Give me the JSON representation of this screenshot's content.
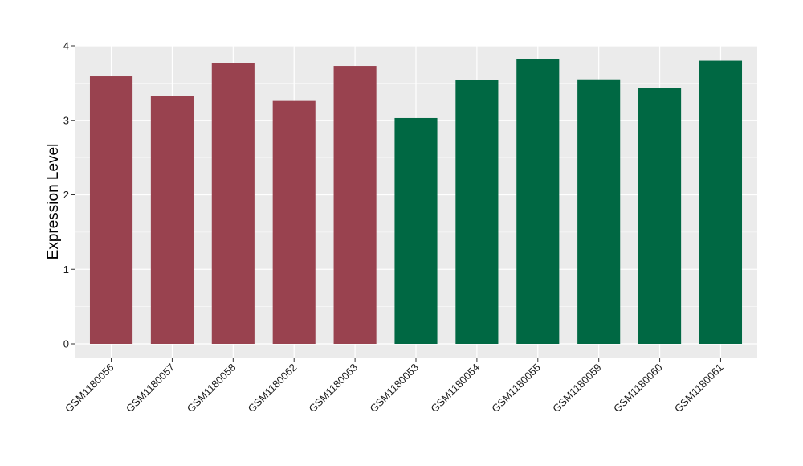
{
  "chart_data": {
    "type": "bar",
    "title": "",
    "xlabel": "",
    "ylabel": "Expression Level",
    "ylim": [
      -0.18,
      4.0
    ],
    "yticks": [
      0,
      1,
      2,
      3,
      4
    ],
    "grid": true,
    "categories": [
      "GSM1180056",
      "GSM1180057",
      "GSM1180058",
      "GSM1180062",
      "GSM1180063",
      "GSM1180053",
      "GSM1180054",
      "GSM1180055",
      "GSM1180059",
      "GSM1180060",
      "GSM1180061"
    ],
    "values": [
      3.59,
      3.33,
      3.77,
      3.26,
      3.73,
      3.03,
      3.54,
      3.82,
      3.55,
      3.43,
      3.8
    ],
    "groups": [
      0,
      0,
      0,
      0,
      0,
      1,
      1,
      1,
      1,
      1,
      1
    ],
    "colors": [
      "#99424f",
      "#006843"
    ],
    "panel_background": "#ebebeb",
    "grid_color": "#ffffff"
  }
}
